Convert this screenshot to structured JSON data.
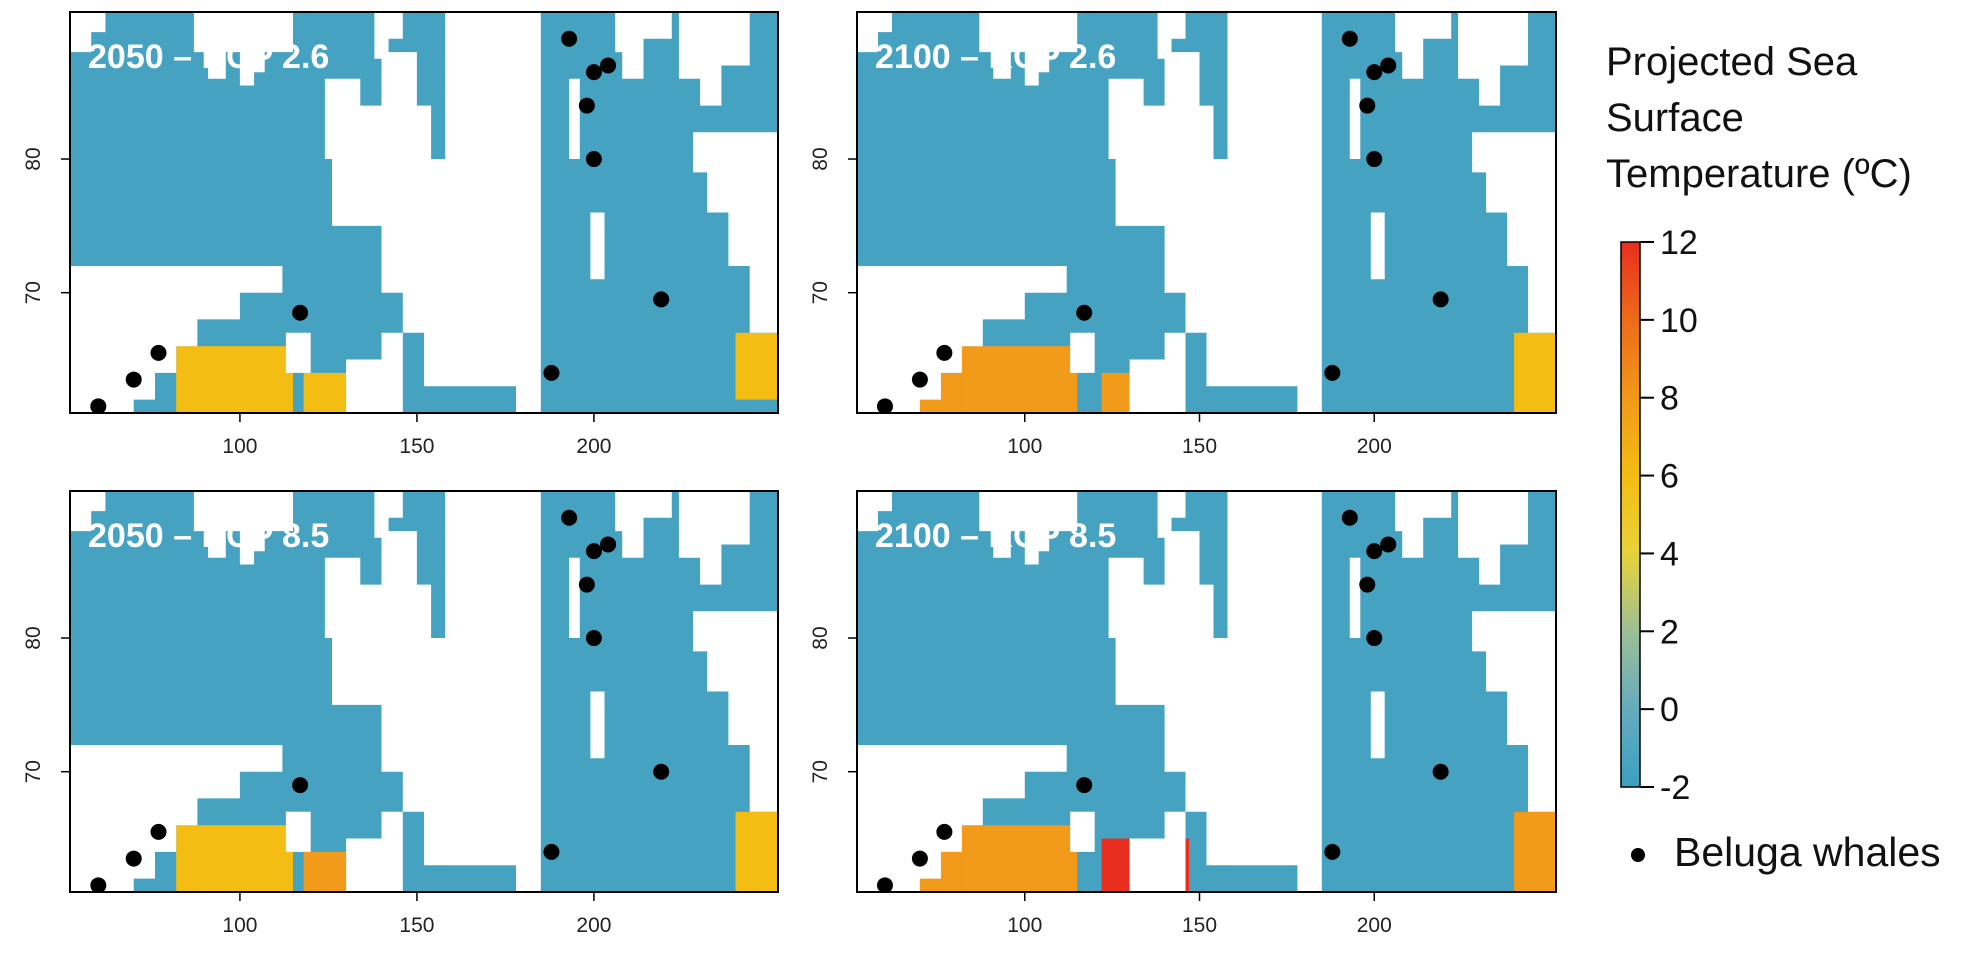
{
  "chart_data": {
    "type": "heatmap",
    "panels": [
      {
        "title": "2050 – RCP 2.6",
        "xticks": [
          100,
          150,
          200
        ],
        "yticks": [
          70,
          80
        ],
        "xlim": [
          52,
          252
        ],
        "ylim": [
          61,
          91
        ],
        "warm_patches": [
          {
            "x": [
              82,
              115
            ],
            "y": [
              61,
              66
            ],
            "temp": 6.0
          },
          {
            "x": [
              118,
              145
            ],
            "y": [
              61,
              64
            ],
            "temp": 6.0
          },
          {
            "x": [
              240,
              252
            ],
            "y": [
              62,
              67
            ],
            "temp": 6.0
          }
        ],
        "belugas": [
          {
            "x": 60,
            "y": 61.5
          },
          {
            "x": 70,
            "y": 63.5
          },
          {
            "x": 77,
            "y": 65.5
          },
          {
            "x": 117,
            "y": 68.5
          },
          {
            "x": 188,
            "y": 64
          },
          {
            "x": 193,
            "y": 89
          },
          {
            "x": 200,
            "y": 86.5
          },
          {
            "x": 204,
            "y": 87
          },
          {
            "x": 198,
            "y": 84
          },
          {
            "x": 200,
            "y": 80
          },
          {
            "x": 219,
            "y": 69.5
          }
        ]
      },
      {
        "title": "2100 – RCP 2.6",
        "xticks": [
          100,
          150,
          200
        ],
        "yticks": [
          70,
          80
        ],
        "xlim": [
          52,
          252
        ],
        "ylim": [
          61,
          91
        ],
        "warm_patches": [
          {
            "x": [
              58,
              82
            ],
            "y": [
              61,
              64
            ],
            "temp": 8.0
          },
          {
            "x": [
              82,
              115
            ],
            "y": [
              61,
              66
            ],
            "temp": 7.0
          },
          {
            "x": [
              122,
              145
            ],
            "y": [
              61,
              64
            ],
            "temp": 8.0
          },
          {
            "x": [
              240,
              252
            ],
            "y": [
              61,
              67
            ],
            "temp": 5.0
          }
        ],
        "belugas": [
          {
            "x": 60,
            "y": 61.5
          },
          {
            "x": 70,
            "y": 63.5
          },
          {
            "x": 77,
            "y": 65.5
          },
          {
            "x": 117,
            "y": 68.5
          },
          {
            "x": 188,
            "y": 64
          },
          {
            "x": 193,
            "y": 89
          },
          {
            "x": 200,
            "y": 86.5
          },
          {
            "x": 204,
            "y": 87
          },
          {
            "x": 198,
            "y": 84
          },
          {
            "x": 200,
            "y": 80
          },
          {
            "x": 219,
            "y": 69.5
          }
        ]
      },
      {
        "title": "2050 – RCP 8.5",
        "xticks": [
          100,
          150,
          200
        ],
        "yticks": [
          70,
          80
        ],
        "xlim": [
          52,
          252
        ],
        "ylim": [
          61,
          91
        ],
        "warm_patches": [
          {
            "x": [
              82,
              115
            ],
            "y": [
              61,
              66
            ],
            "temp": 6.5
          },
          {
            "x": [
              118,
              145
            ],
            "y": [
              61,
              64
            ],
            "temp": 7.0
          },
          {
            "x": [
              240,
              252
            ],
            "y": [
              61,
              67
            ],
            "temp": 5.5
          }
        ],
        "belugas": [
          {
            "x": 60,
            "y": 61.5
          },
          {
            "x": 70,
            "y": 63.5
          },
          {
            "x": 77,
            "y": 65.5
          },
          {
            "x": 117,
            "y": 69
          },
          {
            "x": 188,
            "y": 64
          },
          {
            "x": 193,
            "y": 89
          },
          {
            "x": 200,
            "y": 86.5
          },
          {
            "x": 204,
            "y": 87
          },
          {
            "x": 198,
            "y": 84
          },
          {
            "x": 200,
            "y": 80
          },
          {
            "x": 219,
            "y": 70
          }
        ]
      },
      {
        "title": "2100 – RCP 8.5",
        "xticks": [
          100,
          150,
          200
        ],
        "yticks": [
          70,
          80
        ],
        "xlim": [
          52,
          252
        ],
        "ylim": [
          61,
          91
        ],
        "warm_patches": [
          {
            "x": [
              58,
              82
            ],
            "y": [
              61,
              64
            ],
            "temp": 8.0
          },
          {
            "x": [
              82,
              115
            ],
            "y": [
              61,
              66
            ],
            "temp": 7.0
          },
          {
            "x": [
              122,
              147
            ],
            "y": [
              61,
              65
            ],
            "temp": 11.0
          },
          {
            "x": [
              240,
              252
            ],
            "y": [
              61,
              67
            ],
            "temp": 7.0
          }
        ],
        "belugas": [
          {
            "x": 60,
            "y": 61.5
          },
          {
            "x": 70,
            "y": 63.5
          },
          {
            "x": 77,
            "y": 65.5
          },
          {
            "x": 117,
            "y": 69
          },
          {
            "x": 188,
            "y": 64
          },
          {
            "x": 193,
            "y": 89
          },
          {
            "x": 200,
            "y": 86.5
          },
          {
            "x": 204,
            "y": 87
          },
          {
            "x": 198,
            "y": 84
          },
          {
            "x": 200,
            "y": 80
          },
          {
            "x": 219,
            "y": 70
          }
        ]
      }
    ],
    "colorbar": {
      "title_lines": [
        "Projected Sea",
        "Surface",
        "Temperature (ºC)"
      ],
      "min": -2,
      "max": 12,
      "ticks": [
        12,
        10,
        8,
        6,
        4,
        2,
        0,
        -2
      ]
    },
    "legend": {
      "marker": "filled black circle",
      "label": "Beluga whales"
    },
    "colors": {
      "ocean": "#45a3c1",
      "land": "#ffffff",
      "dot": "#000000",
      "scale": [
        "#3aa0c2",
        "#64abbf",
        "#9abf98",
        "#e8d23a",
        "#f4bd13",
        "#f29a1a",
        "#ee6a1a",
        "#e82e1e"
      ]
    }
  }
}
